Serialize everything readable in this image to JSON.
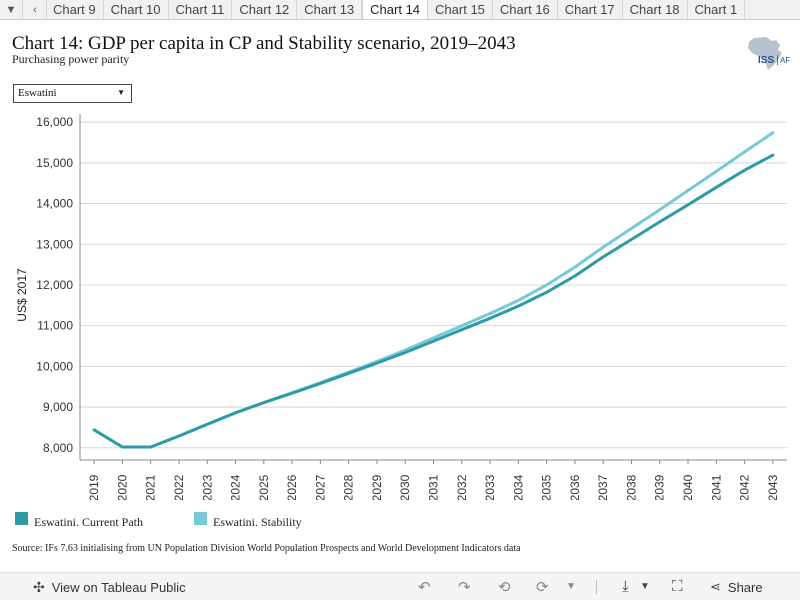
{
  "tabbar": {
    "tabs": [
      "Chart 9",
      "Chart 10",
      "Chart 11",
      "Chart 12",
      "Chart 13",
      "Chart 14",
      "Chart 15",
      "Chart 16",
      "Chart 17",
      "Chart 18",
      "Chart 1"
    ],
    "active_tab": "Chart 14",
    "menu_icon": "caret-down-icon",
    "prev_icon": "chevron-left-icon"
  },
  "header": {
    "title": "Chart 14: GDP per capita in CP and Stability scenario, 2019–2043",
    "subtitle": "Purchasing power parity"
  },
  "logo": {
    "text": "ISS",
    "suffix": "AF"
  },
  "filter": {
    "selected": "Eswatini"
  },
  "colors": {
    "current_path": "#2e9aa6",
    "stability": "#77c9d5",
    "grid": "#d8d8d8",
    "axis": "#888888"
  },
  "chart_data": {
    "type": "line",
    "ylabel": "US$ 2017",
    "ylim": [
      7700,
      16200
    ],
    "yticks": [
      8000,
      9000,
      10000,
      11000,
      12000,
      13000,
      14000,
      15000,
      16000
    ],
    "ytick_labels": [
      "8,000",
      "9,000",
      "10,000",
      "11,000",
      "12,000",
      "13,000",
      "14,000",
      "15,000",
      "16,000"
    ],
    "x": [
      2019,
      2020,
      2021,
      2022,
      2023,
      2024,
      2025,
      2026,
      2027,
      2028,
      2029,
      2030,
      2031,
      2032,
      2033,
      2034,
      2035,
      2036,
      2037,
      2038,
      2039,
      2040,
      2041,
      2042,
      2043
    ],
    "series": [
      {
        "name": "Eswatini. Current Path",
        "values": [
          8440,
          8020,
          8020,
          8290,
          8580,
          8860,
          9110,
          9340,
          9580,
          9830,
          10080,
          10340,
          10620,
          10900,
          11180,
          11480,
          11820,
          12220,
          12690,
          13120,
          13550,
          13970,
          14400,
          14820,
          15190
        ]
      },
      {
        "name": "Eswatini. Stability",
        "values": [
          8440,
          8020,
          8020,
          8290,
          8580,
          8860,
          9110,
          9350,
          9600,
          9860,
          10120,
          10400,
          10700,
          11000,
          11300,
          11620,
          12000,
          12440,
          12930,
          13390,
          13850,
          14320,
          14790,
          15270,
          15740
        ]
      }
    ]
  },
  "source": "Source: IFs 7.63 initialising from UN Population Division World Population Prospects and World Development Indicators data",
  "toolbar": {
    "view_label": "View on Tableau Public",
    "share_label": "Share",
    "icons": [
      "undo-icon",
      "redo-icon",
      "revert-icon",
      "refresh-icon",
      "download-icon",
      "fullscreen-icon",
      "share-icon"
    ]
  }
}
